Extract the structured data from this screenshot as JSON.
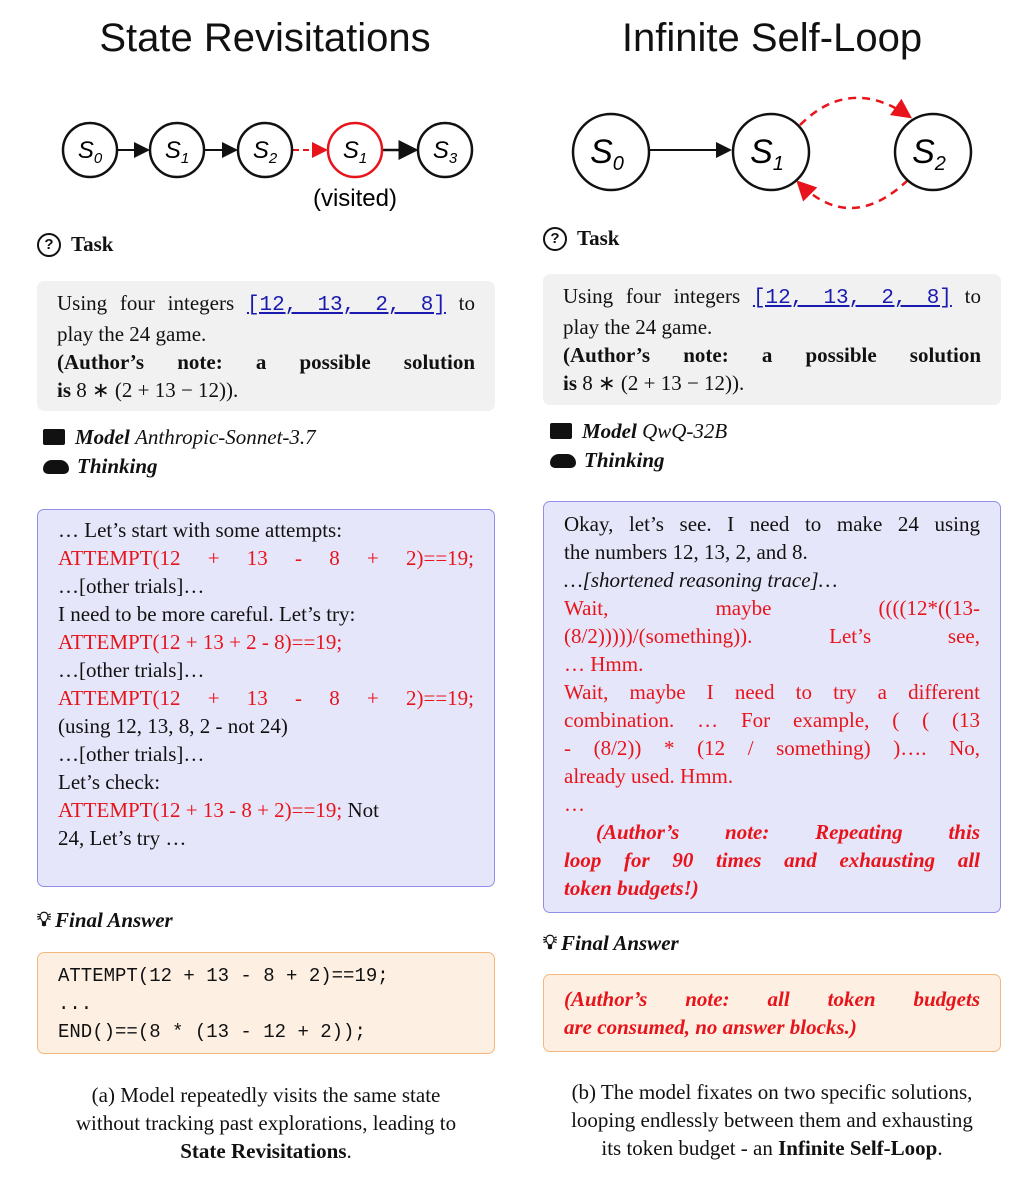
{
  "left": {
    "title": "State Revisitations",
    "states": [
      "S0",
      "S1",
      "S2",
      "S1",
      "S3"
    ],
    "visited_label": "(visited)",
    "task_label": "Task",
    "task_text_1": "Using four integers",
    "task_numbers": "[12, 13, 2, 8]",
    "task_text_2": "to",
    "task_text_3": "play the 24 game.",
    "note_1": "(Author’s note: a possible solution",
    "note_2a": "is",
    "note_2b": "8 ∗ (2 + 13 − 12)).",
    "model_label": "Model",
    "model_name": "Anthropic-Sonnet-3.7",
    "thinking_label": "Thinking",
    "thinking_lines": [
      {
        "text": "…  Let’s start with some attempts:",
        "red": false,
        "justify": false
      },
      {
        "text": "ATTEMPT(12  +  13  -  8  +  2)==19;",
        "red": true,
        "justify": true
      },
      {
        "text": "…[other trials]…",
        "red": false,
        "justify": false
      },
      {
        "text": "I need to be more careful. Let’s try:",
        "red": false,
        "justify": false
      },
      {
        "text": "ATTEMPT(12 + 13 + 2 - 8)==19;",
        "red": true,
        "justify": false
      },
      {
        "text": "…[other trials]…",
        "red": false,
        "justify": false
      },
      {
        "text": "ATTEMPT(12  +  13  -  8  +  2)==19;",
        "red": true,
        "justify": true
      },
      {
        "text": "(using 12, 13, 8, 2 - not 24)",
        "red": false,
        "justify": false
      },
      {
        "text": "…[other trials]…",
        "red": false,
        "justify": false
      },
      {
        "text": "Let’s check:",
        "red": false,
        "justify": false
      }
    ],
    "last_attempt": "ATTEMPT(12 + 13 - 8 + 2)==19;",
    "last_tail": " Not",
    "last_line": "24, Let’s try …",
    "final_label": "Final Answer",
    "final_lines": [
      "ATTEMPT(12 + 13 - 8 + 2)==19;",
      "...",
      "END()==(8 * (13 - 12 + 2));"
    ],
    "caption_1": "(a) Model repeatedly visits the same state",
    "caption_2": "without tracking past explorations, leading to",
    "caption_3": "State Revisitations",
    "caption_end": "."
  },
  "right": {
    "title": "Infinite Self-Loop",
    "states": [
      "S0",
      "S1",
      "S2"
    ],
    "task_label": "Task",
    "task_text_1": "Using four integers",
    "task_numbers": "[12, 13, 2, 8]",
    "task_text_2": "to",
    "task_text_3": "play the 24 game.",
    "note_1": "(Author’s note: a possible solution",
    "note_2a": "is",
    "note_2b": "8 ∗ (2 + 13 − 12)).",
    "model_label": "Model",
    "model_name": "QwQ-32B",
    "thinking_label": "Thinking",
    "thinking_lines": [
      {
        "text": "Okay, let’s see.  I need to make 24 using",
        "red": false,
        "justify": true,
        "italic": false
      },
      {
        "text": "the numbers 12, 13, 2, and 8.",
        "red": false,
        "justify": false,
        "italic": false
      },
      {
        "text": "…[shortened reasoning trace]…",
        "red": false,
        "justify": false,
        "italic": true
      },
      {
        "text": "Wait,  maybe  ((((12*((13-",
        "red": true,
        "justify": true,
        "italic": false
      },
      {
        "text": "(8/2)))))/(something)).  Let’s  see,",
        "red": true,
        "justify": true,
        "italic": false
      },
      {
        "text": "…  Hmm.",
        "red": true,
        "justify": false,
        "italic": false
      },
      {
        "text": "Wait, maybe I need to try a different",
        "red": true,
        "justify": true,
        "italic": false
      },
      {
        "text": "combination.  …  For example, ( ( (13",
        "red": true,
        "justify": true,
        "italic": false
      },
      {
        "text": "- (8/2)) * (12 / something) )….  No,",
        "red": true,
        "justify": true,
        "italic": false
      },
      {
        "text": "already used. Hmm.",
        "red": true,
        "justify": false,
        "italic": false
      },
      {
        "text": "…",
        "red": true,
        "justify": false,
        "italic": false
      }
    ],
    "note_lines": [
      "(Author’s note:  Repeating this",
      "loop for 90 times and exhausting all",
      "token budgets!)"
    ],
    "final_label": "Final Answer",
    "final_lines": [
      "(Author’s note:  all token budgets",
      "are consumed, no answer blocks.)"
    ],
    "caption_1": "(b) The model fixates on two specific solutions,",
    "caption_2": "looping endlessly between them and exhausting",
    "caption_3a": "its token budget - an",
    "caption_3b": "Infinite Self-Loop",
    "caption_end": "."
  },
  "colors": {
    "red": "#e8141b",
    "thinking_bg": "#e6e6fa",
    "task_bg": "#f1f1f1",
    "answer_bg": "#fdf0e3"
  }
}
